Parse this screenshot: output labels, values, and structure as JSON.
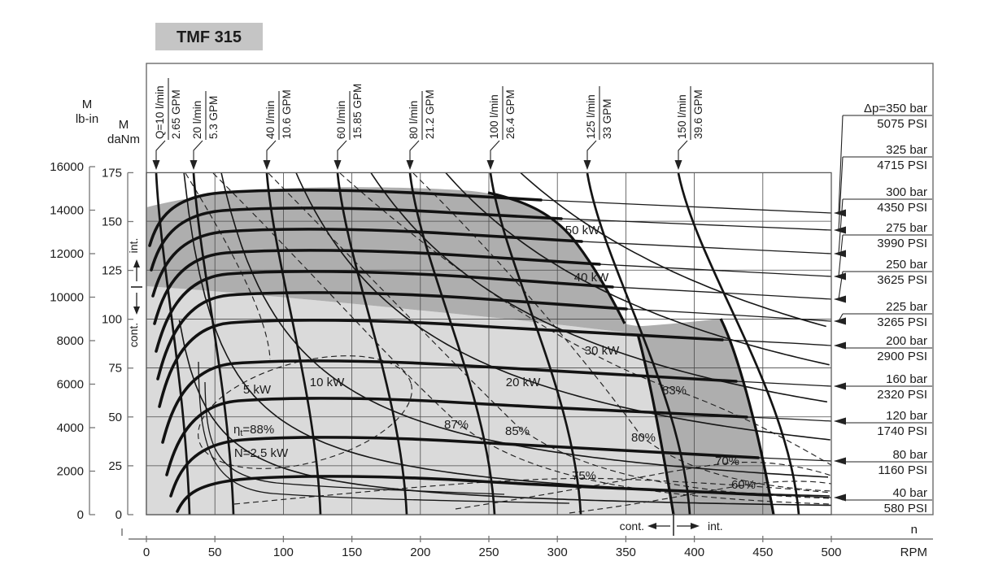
{
  "title": "TMF 315",
  "axes": {
    "lb_in": {
      "title_line1": "M",
      "title_line2": "lb-in",
      "ticks": [
        "16000",
        "14000",
        "12000",
        "10000",
        "8000",
        "6000",
        "4000",
        "2000",
        "0"
      ]
    },
    "danm": {
      "title_line1": "M",
      "title_line2": "daNm",
      "ticks": [
        "175",
        "150",
        "125",
        "100",
        "75",
        "50",
        "25",
        "0"
      ]
    },
    "rpm": {
      "ticks": [
        "0",
        "50",
        "100",
        "150",
        "200",
        "250",
        "300",
        "350",
        "400",
        "450",
        "500"
      ],
      "var_label": "n",
      "unit_label": "RPM"
    }
  },
  "duty": {
    "left_int": "int.",
    "left_cont": "cont.",
    "bottom_cont": "cont.",
    "bottom_int": "int."
  },
  "flow_labels": [
    {
      "line1": "Q=10 l/min",
      "line2": "2.65 GPM"
    },
    {
      "line1": "20 l/min",
      "line2": "5.3 GPM"
    },
    {
      "line1": "40 l/min",
      "line2": "10.6 GPM"
    },
    {
      "line1": "60 l/min",
      "line2": "15.85 GPM"
    },
    {
      "line1": "80 l/min",
      "line2": "21.2 GPM"
    },
    {
      "line1": "100 l/min",
      "line2": "26.4 GPM"
    },
    {
      "line1": "125 l/min",
      "line2": "33 GPM"
    },
    {
      "line1": "150 l/min",
      "line2": "39.6 GPM"
    }
  ],
  "pressure_labels": [
    {
      "bar": "Δp=350 bar",
      "psi": "5075 PSI"
    },
    {
      "bar": "325 bar",
      "psi": "4715 PSI"
    },
    {
      "bar": "300 bar",
      "psi": "4350 PSI"
    },
    {
      "bar": "275 bar",
      "psi": "3990 PSI"
    },
    {
      "bar": "250 bar",
      "psi": "3625 PSI"
    },
    {
      "bar": "225 bar",
      "psi": "3265 PSI"
    },
    {
      "bar": "200 bar",
      "psi": "2900 PSI"
    },
    {
      "bar": "160 bar",
      "psi": "2320 PSI"
    },
    {
      "bar": "120 bar",
      "psi": "1740 PSI"
    },
    {
      "bar": "80 bar",
      "psi": "1160 PSI"
    },
    {
      "bar": "40 bar",
      "psi": "580 PSI"
    }
  ],
  "curve_labels": {
    "p50": "50 kW",
    "p40": "40 kW",
    "p30": "30 kW",
    "p20": "20 kW",
    "p10": "10 kW",
    "p5": "5 kW",
    "p25": "N=2,5 kW",
    "eta_prefix": "η",
    "eta_sub": "t",
    "eta_suffix": "=88%",
    "e87": "87%",
    "e85": "85%",
    "e83": "83%",
    "e80": "80%",
    "e75": "75%",
    "e70": "70%",
    "e60": "60%"
  },
  "colors": {
    "zone_continuous": "#dadada",
    "zone_intermittent": "#aeaeae",
    "title_box": "#c5c5c5",
    "line": "#1a1a1a"
  },
  "chart_data": {
    "type": "line",
    "title": "TMF 315",
    "x_axis": {
      "label": "n",
      "unit": "RPM",
      "min": 0,
      "max": 500,
      "tick_step": 50
    },
    "y_axis_outer": {
      "label": "M",
      "unit": "lb-in",
      "min": 0,
      "max": 16000,
      "tick_step": 2000
    },
    "y_axis_inner": {
      "label": "M",
      "unit": "daNm",
      "min": 0,
      "max": 175,
      "tick_step": 25
    },
    "flow_lines": [
      {
        "q_l_min": 10,
        "q_gpm": 2.65
      },
      {
        "q_l_min": 20,
        "q_gpm": 5.3
      },
      {
        "q_l_min": 40,
        "q_gpm": 10.6
      },
      {
        "q_l_min": 60,
        "q_gpm": 15.85
      },
      {
        "q_l_min": 80,
        "q_gpm": 21.2
      },
      {
        "q_l_min": 100,
        "q_gpm": 26.4
      },
      {
        "q_l_min": 125,
        "q_gpm": 33
      },
      {
        "q_l_min": 150,
        "q_gpm": 39.6
      }
    ],
    "pressure_lines": [
      {
        "dp_bar": 350,
        "psi": 5075
      },
      {
        "dp_bar": 325,
        "psi": 4715
      },
      {
        "dp_bar": 300,
        "psi": 4350
      },
      {
        "dp_bar": 275,
        "psi": 3990
      },
      {
        "dp_bar": 250,
        "psi": 3625
      },
      {
        "dp_bar": 225,
        "psi": 3265
      },
      {
        "dp_bar": 200,
        "psi": 2900
      },
      {
        "dp_bar": 160,
        "psi": 2320
      },
      {
        "dp_bar": 120,
        "psi": 1740
      },
      {
        "dp_bar": 80,
        "psi": 1160
      },
      {
        "dp_bar": 40,
        "psi": 580
      }
    ],
    "power_curves": {
      "unit": "kW",
      "values": [
        2.5,
        5,
        10,
        20,
        30,
        40,
        50
      ]
    },
    "efficiency_contours": {
      "symbol": "ηt",
      "unit": "%",
      "values": [
        88,
        87,
        85,
        83,
        80,
        75,
        70,
        60
      ]
    },
    "operating_zones": {
      "continuous": {
        "label": "cont.",
        "max_speed_rpm": 385,
        "max_torque_daNm": 115
      },
      "intermittent": {
        "label": "int.",
        "max_speed_rpm": 460,
        "max_torque_daNm": 165
      }
    }
  }
}
